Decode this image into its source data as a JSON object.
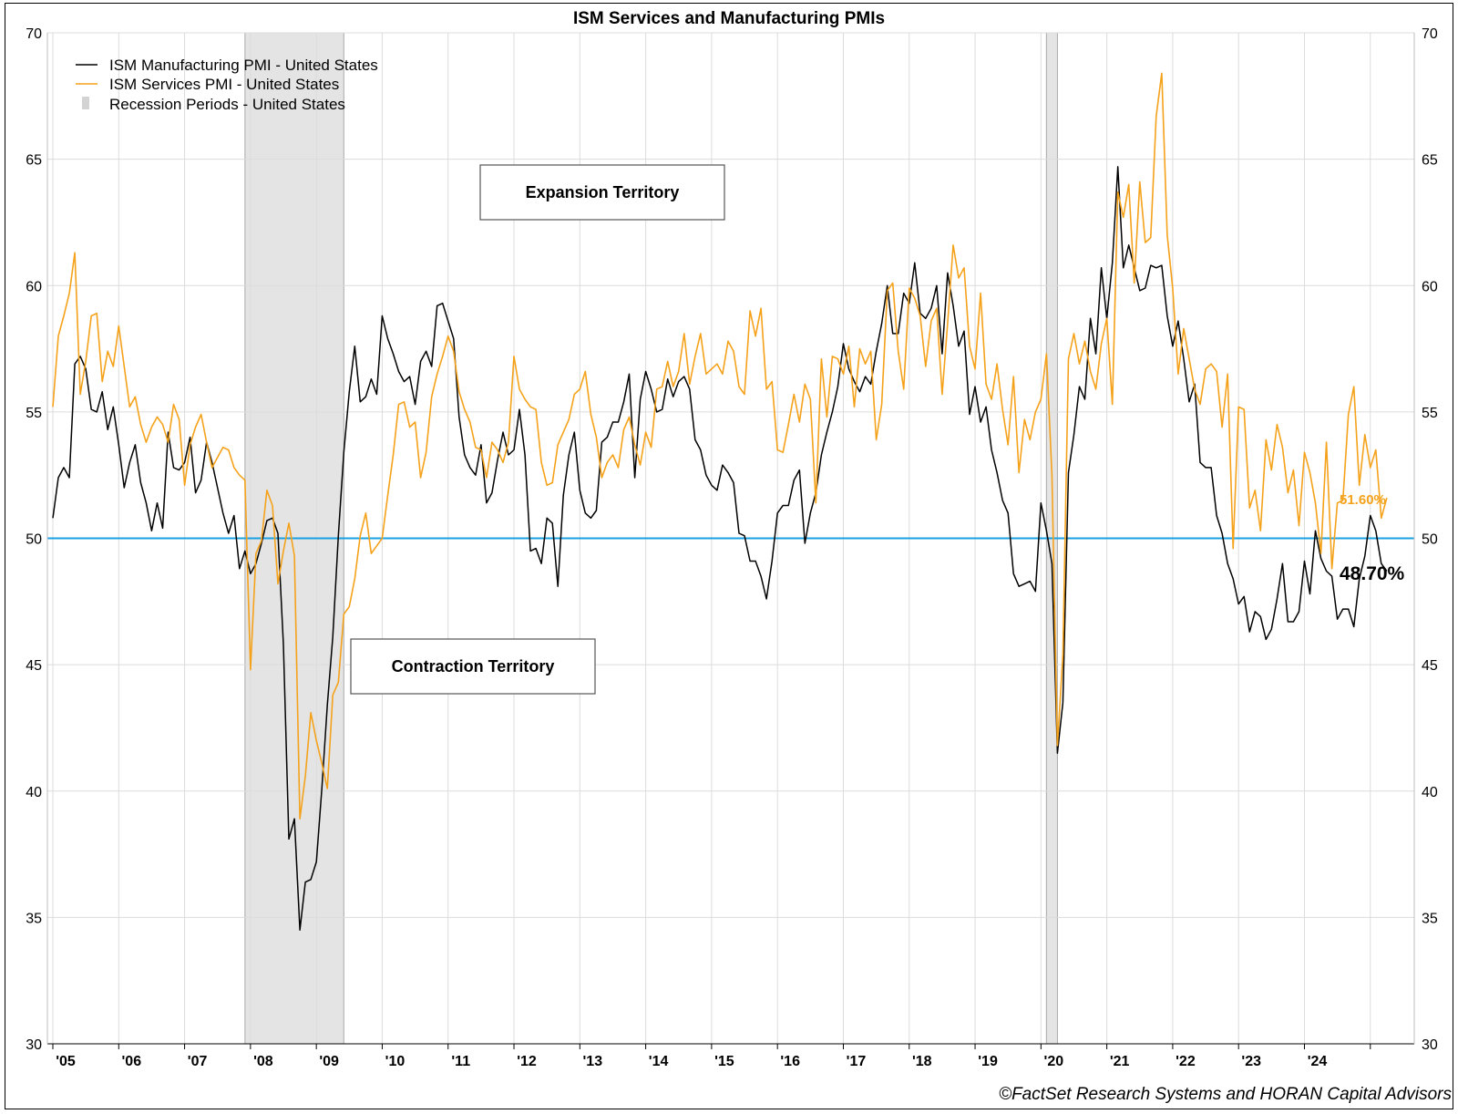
{
  "chart_data": {
    "type": "line",
    "title": "ISM Services and Manufacturing PMIs",
    "credit": "©FactSet Research Systems and HORAN Capital Advisors",
    "ylim": [
      30,
      70
    ],
    "yticks": [
      30,
      35,
      40,
      45,
      50,
      55,
      60,
      65,
      70
    ],
    "xlim": [
      2004.917,
      2025.667
    ],
    "xticks": [
      {
        "year": 2005,
        "label": "'05"
      },
      {
        "year": 2006,
        "label": "'06"
      },
      {
        "year": 2007,
        "label": "'07"
      },
      {
        "year": 2008,
        "label": "'08"
      },
      {
        "year": 2009,
        "label": "'09"
      },
      {
        "year": 2010,
        "label": "'10"
      },
      {
        "year": 2011,
        "label": "'11"
      },
      {
        "year": 2012,
        "label": "'12"
      },
      {
        "year": 2013,
        "label": "'13"
      },
      {
        "year": 2014,
        "label": "'14"
      },
      {
        "year": 2015,
        "label": "'15"
      },
      {
        "year": 2016,
        "label": "'16"
      },
      {
        "year": 2017,
        "label": "'17"
      },
      {
        "year": 2018,
        "label": "'18"
      },
      {
        "year": 2019,
        "label": "'19"
      },
      {
        "year": 2020,
        "label": "'20"
      },
      {
        "year": 2021,
        "label": "'21"
      },
      {
        "year": 2022,
        "label": "'22"
      },
      {
        "year": 2023,
        "label": "'23"
      },
      {
        "year": 2024,
        "label": "'24"
      }
    ],
    "grid": true,
    "legend": [
      {
        "name": "ISM Manufacturing PMI - United States",
        "color": "#000000",
        "kind": "line"
      },
      {
        "name": "ISM Services PMI - United States",
        "color": "#f5a21b",
        "kind": "line"
      },
      {
        "name": "Recession Periods - United States",
        "color": "#d3d3d3",
        "kind": "bar"
      }
    ],
    "legend_position": "top-left",
    "reference_line": {
      "y": 50,
      "color": "#1ba1e2"
    },
    "recessions": [
      {
        "start": 2007.917,
        "end": 2009.417
      },
      {
        "start": 2020.083,
        "end": 2020.25
      }
    ],
    "annotations": [
      {
        "text": "Expansion Territory",
        "x": 2013.0,
        "y": 64.0
      },
      {
        "text": "Contraction Territory",
        "x": 2011.0,
        "y": 45.0
      }
    ],
    "end_labels": [
      {
        "text": "51.60%",
        "series": "ISM Services PMI - United States",
        "color": "#f5a21b"
      },
      {
        "text": "48.70%",
        "series": "ISM Manufacturing PMI - United States",
        "color": "#000000"
      }
    ],
    "x_start": 2005.0,
    "x_step_months": 1,
    "series": [
      {
        "name": "ISM Manufacturing PMI - United States",
        "color": "#000000",
        "values": [
          50.8,
          52.4,
          52.8,
          52.4,
          56.9,
          57.2,
          56.7,
          55.1,
          55.0,
          55.8,
          54.3,
          55.2,
          53.7,
          52.0,
          53.0,
          53.7,
          52.2,
          51.4,
          50.3,
          51.4,
          50.4,
          54.2,
          52.8,
          52.7,
          53.0,
          54.0,
          51.8,
          52.3,
          53.8,
          53.0,
          52.0,
          51.0,
          50.2,
          50.9,
          48.8,
          49.5,
          48.6,
          49.0,
          49.8,
          50.7,
          50.8,
          50.2,
          45.8,
          38.1,
          38.9,
          34.5,
          36.4,
          36.5,
          37.2,
          40.1,
          43.4,
          46.1,
          50.1,
          53.4,
          55.8,
          57.6,
          55.4,
          55.6,
          56.3,
          55.7,
          58.8,
          57.9,
          57.3,
          56.6,
          56.2,
          56.4,
          55.3,
          57.0,
          57.4,
          56.8,
          59.2,
          59.3,
          58.6,
          57.9,
          54.8,
          53.3,
          52.8,
          52.5,
          53.7,
          51.4,
          51.8,
          53.1,
          54.2,
          53.3,
          53.5,
          55.1,
          53.3,
          49.5,
          49.6,
          49.0,
          50.8,
          50.6,
          48.1,
          51.7,
          53.3,
          54.2,
          51.9,
          51.0,
          50.8,
          51.1,
          53.8,
          54.0,
          54.6,
          54.6,
          55.4,
          56.5,
          52.4,
          55.5,
          56.6,
          55.9,
          55.0,
          55.1,
          56.3,
          55.6,
          56.2,
          56.4,
          55.9,
          53.9,
          53.5,
          52.5,
          52.1,
          51.9,
          52.9,
          52.6,
          52.2,
          50.2,
          50.1,
          49.1,
          49.1,
          48.5,
          47.6,
          49.1,
          51.0,
          51.3,
          51.3,
          52.3,
          52.7,
          49.8,
          51.0,
          51.8,
          53.3,
          54.2,
          55.0,
          56.0,
          57.7,
          56.7,
          56.2,
          55.8,
          56.4,
          56.1,
          57.4,
          58.5,
          60.0,
          58.1,
          58.1,
          59.7,
          59.3,
          60.9,
          58.9,
          58.7,
          59.1,
          60.0,
          57.3,
          60.5,
          59.2,
          57.6,
          58.2,
          54.9,
          56.0,
          54.6,
          55.2,
          53.5,
          52.6,
          51.5,
          51.0,
          48.6,
          48.1,
          48.2,
          48.3,
          47.9,
          51.4,
          50.3,
          49.0,
          41.5,
          43.5,
          52.6,
          54.1,
          56.0,
          55.5,
          58.7,
          57.3,
          60.7,
          58.7,
          60.9,
          64.7,
          60.7,
          61.6,
          60.7,
          59.8,
          59.9,
          60.8,
          60.7,
          60.8,
          58.8,
          57.6,
          58.6,
          57.1,
          55.4,
          56.1,
          53.0,
          52.8,
          52.8,
          50.9,
          50.2,
          49.0,
          48.4,
          47.4,
          47.7,
          46.3,
          47.1,
          46.9,
          46.0,
          46.4,
          47.6,
          49.0,
          46.7,
          46.7,
          47.1,
          49.1,
          47.8,
          50.3,
          49.2,
          48.7,
          48.5,
          46.8,
          47.2,
          47.2,
          46.5,
          48.4,
          49.3,
          50.9,
          50.3,
          49.0,
          48.7
        ]
      },
      {
        "name": "ISM Services PMI - United States",
        "color": "#f5a21b",
        "values": [
          55.2,
          58.0,
          58.8,
          59.7,
          61.3,
          55.7,
          57.0,
          58.8,
          58.9,
          56.2,
          57.4,
          56.8,
          58.4,
          56.8,
          55.2,
          55.6,
          54.5,
          53.8,
          54.4,
          54.8,
          54.5,
          53.8,
          55.3,
          54.7,
          52.1,
          53.7,
          54.4,
          54.9,
          53.8,
          52.8,
          53.2,
          53.6,
          53.5,
          52.8,
          52.5,
          52.3,
          44.8,
          49.4,
          49.9,
          51.9,
          51.3,
          48.2,
          49.5,
          50.6,
          49.3,
          38.9,
          40.6,
          43.1,
          42.0,
          41.1,
          40.1,
          43.8,
          44.3,
          47.0,
          47.3,
          48.4,
          50.1,
          51.0,
          49.4,
          49.7,
          50.0,
          51.7,
          53.3,
          55.3,
          55.4,
          54.4,
          54.6,
          52.4,
          53.4,
          55.6,
          56.5,
          57.2,
          58.0,
          57.4,
          55.8,
          55.1,
          54.6,
          53.6,
          53.5,
          52.4,
          53.8,
          53.5,
          53.0,
          53.8,
          57.2,
          55.9,
          55.5,
          55.2,
          55.1,
          53.0,
          52.1,
          52.2,
          53.7,
          54.2,
          54.7,
          55.7,
          55.9,
          56.6,
          54.9,
          54.0,
          52.4,
          53.0,
          53.3,
          52.8,
          54.3,
          54.8,
          53.7,
          52.9,
          54.2,
          53.6,
          55.9,
          56.0,
          57.0,
          56.0,
          56.6,
          58.1,
          56.1,
          57.2,
          58.1,
          56.5,
          56.7,
          56.9,
          56.5,
          57.8,
          57.4,
          56.0,
          55.7,
          59.0,
          58.0,
          59.1,
          55.9,
          56.2,
          53.5,
          53.4,
          54.5,
          55.7,
          54.6,
          56.1,
          55.5,
          51.4,
          57.1,
          54.8,
          57.2,
          57.1,
          56.5,
          57.6,
          55.2,
          57.5,
          56.9,
          57.4,
          53.9,
          55.3,
          59.8,
          60.1,
          57.4,
          55.9,
          59.9,
          59.5,
          58.8,
          56.8,
          58.6,
          59.1,
          55.7,
          58.5,
          61.6,
          60.3,
          60.7,
          57.6,
          56.7,
          59.7,
          56.1,
          55.5,
          56.9,
          55.1,
          53.7,
          56.4,
          52.6,
          54.7,
          53.9,
          55.0,
          55.5,
          57.3,
          52.5,
          41.8,
          45.4,
          57.1,
          58.1,
          56.9,
          57.8,
          56.6,
          55.9,
          57.7,
          58.7,
          55.3,
          63.7,
          62.7,
          64.0,
          60.1,
          64.1,
          61.7,
          61.9,
          66.7,
          68.4,
          62.0,
          59.9,
          56.5,
          58.3,
          57.1,
          55.9,
          55.3,
          56.7,
          56.9,
          56.6,
          54.4,
          56.5,
          49.6,
          55.2,
          55.1,
          51.2,
          51.9,
          50.3,
          53.9,
          52.7,
          54.5,
          53.6,
          51.8,
          52.7,
          50.5,
          53.4,
          52.6,
          51.4,
          49.4,
          53.8,
          48.8,
          51.4,
          51.5,
          54.9,
          56.0,
          52.1,
          54.1,
          52.8,
          53.5,
          50.8,
          51.6
        ]
      }
    ]
  }
}
